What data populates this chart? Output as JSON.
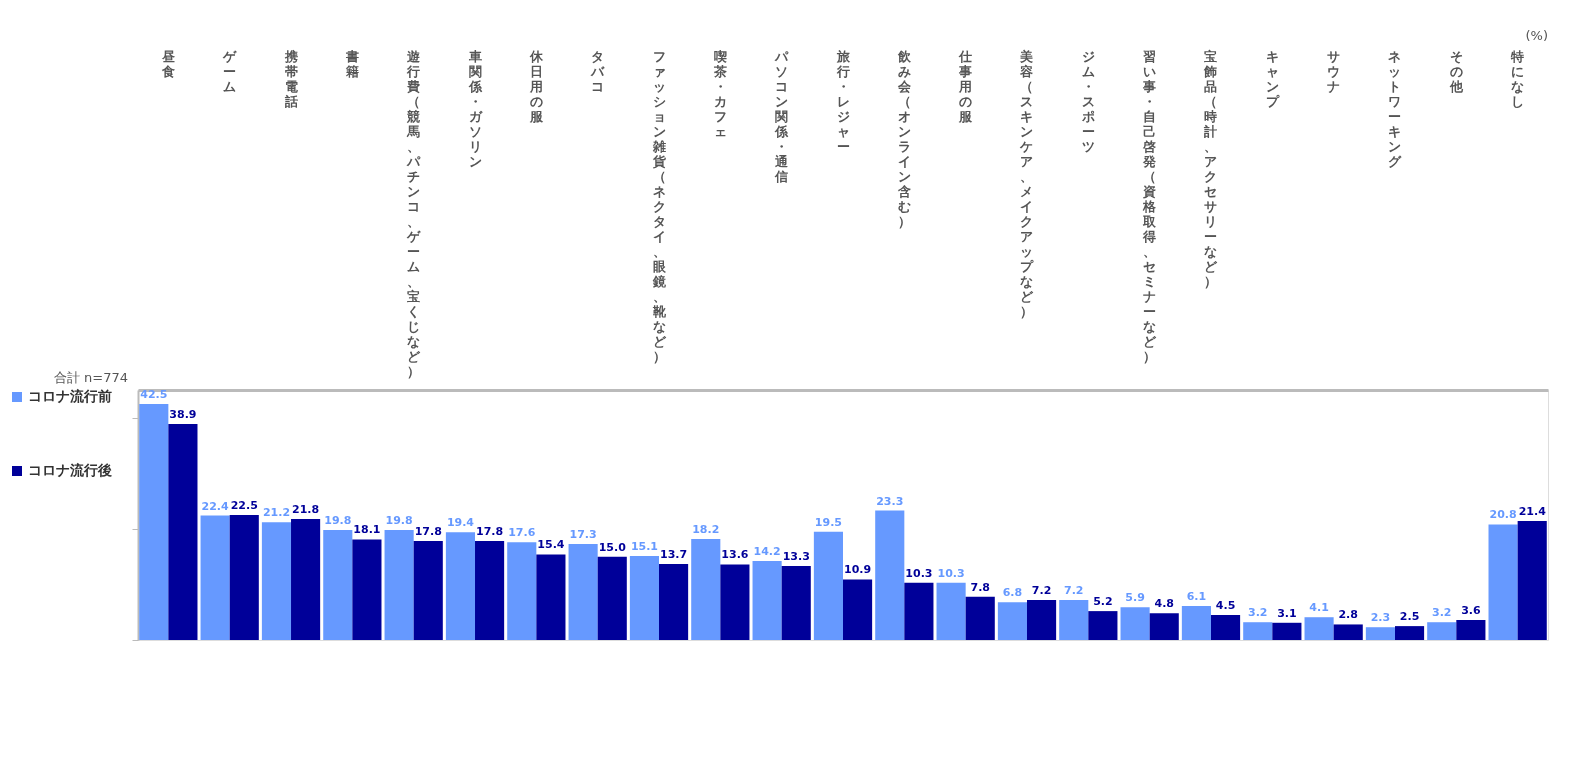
{
  "chart_data": {
    "type": "bar",
    "categories": [
      "昼食",
      "ゲーム",
      "携帯電話",
      "書籍",
      "遊行費（競馬、パチンコ、ゲーム、宝くじなど）",
      "車関係・ガソリン",
      "休日用の服",
      "タバコ",
      "ファッション雑貨（ネクタイ、眼鏡、靴など）",
      "喫茶・カフェ",
      "パソコン関係・通信",
      "旅行・レジャー",
      "飲み会（オンライン含む）",
      "仕事用の服",
      "美容（スキンケア、メイクアップなど）",
      "ジム・スポーツ",
      "習い事・自己啓発（資格取得、セミナーなど）",
      "宝飾品（時計、アクセサリーなど）",
      "キャンプ",
      "サウナ",
      "ネットワーキング",
      "その他",
      "特になし"
    ],
    "series": [
      {
        "name": "コロナ流行前",
        "color": "#6699ff",
        "values": [
          42.5,
          22.4,
          21.2,
          19.8,
          19.8,
          19.4,
          17.6,
          17.3,
          15.1,
          18.2,
          14.2,
          19.5,
          23.3,
          10.3,
          6.8,
          7.2,
          5.9,
          6.1,
          3.2,
          4.1,
          2.3,
          3.2,
          20.8
        ],
        "value_labels": [
          "42.5",
          "22.4",
          "21.2",
          "19.8",
          "19.8",
          "19.4",
          "17.6",
          "17.3",
          "15.1",
          "18.2",
          "14.2",
          "19.5",
          "23.3",
          "10.3",
          "6.8",
          "7.2",
          "5.9",
          "6.1",
          "3.2",
          "4.1",
          "2.3",
          "3.2",
          "20.8"
        ]
      },
      {
        "name": "コロナ流行後",
        "color": "#000099",
        "values": [
          38.9,
          22.5,
          21.8,
          18.1,
          17.8,
          17.8,
          15.4,
          15.0,
          13.7,
          13.6,
          13.3,
          10.9,
          10.3,
          7.8,
          7.2,
          5.2,
          4.8,
          4.5,
          3.1,
          2.8,
          2.5,
          3.6,
          21.4
        ],
        "value_labels": [
          "38.9",
          "22.5",
          "21.8",
          "18.1",
          "17.8",
          "17.8",
          "15.4",
          "15.0",
          "13.7",
          "13.6",
          "13.3",
          "10.9",
          "10.3",
          "7.8",
          "7.2",
          "5.2",
          "4.8",
          "4.5",
          "3.1",
          "2.8",
          "2.5",
          "3.6",
          "21.4"
        ]
      }
    ],
    "ylim": [
      0,
      45
    ],
    "yticks": [
      {
        "value": 0,
        "label": null
      },
      {
        "value": 20,
        "label": null
      },
      {
        "value": 40,
        "label": null
      }
    ],
    "tick_labels": "x",
    "grid": false,
    "legend": "left",
    "annotations": [
      "合計 n=774",
      "(%)"
    ]
  }
}
